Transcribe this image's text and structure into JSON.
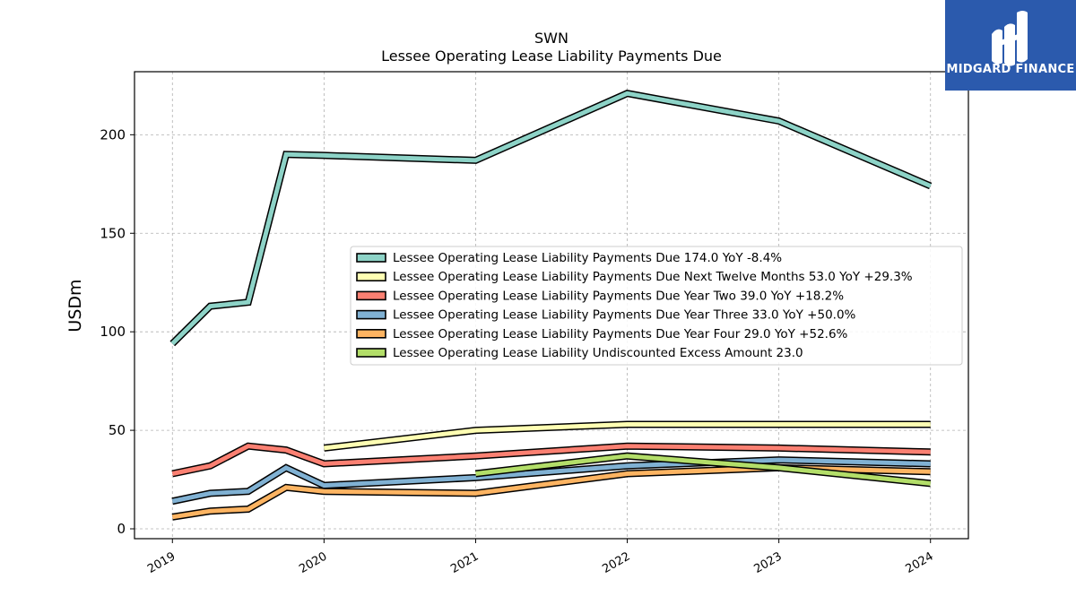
{
  "logo": {
    "text": "MIDGARD FINANCE",
    "bg_color": "#2b5aad"
  },
  "chart_data": {
    "type": "line",
    "title": "SWN",
    "subtitle": "Lessee Operating Lease Liability Payments Due",
    "xlabel": "",
    "ylabel": "USDm",
    "xlim": [
      2018.75,
      2024.25
    ],
    "ylim": [
      -5,
      232
    ],
    "yticks": [
      0,
      50,
      100,
      150,
      200
    ],
    "xticks": [
      2019,
      2020,
      2021,
      2022,
      2023,
      2024
    ],
    "grid": true,
    "legend_position": "center-right",
    "series": [
      {
        "name": "Lessee Operating Lease Liability Payments Due  174.0 YoY -8.4%",
        "color": "#8dd3c7",
        "x": [
          2019.0,
          2019.25,
          2019.5,
          2019.75,
          2020.0,
          2021.0,
          2022.0,
          2023.0,
          2024.0
        ],
        "y": [
          94.0,
          113.0,
          115.0,
          190.0,
          189.5,
          187.0,
          221.0,
          207.0,
          174.0
        ]
      },
      {
        "name": "Lessee Operating Lease Liability Payments Due Next Twelve Months  53.0 YoY +29.3%",
        "color": "#ffffb3",
        "x": [
          2020.0,
          2021.0,
          2022.0,
          2023.0,
          2024.0
        ],
        "y": [
          41.0,
          50.0,
          53.0,
          53.0,
          53.0
        ]
      },
      {
        "name": "Lessee Operating Lease Liability Payments Due Year Two  39.0 YoY +18.2%",
        "color": "#fb8072",
        "x": [
          2019.0,
          2019.25,
          2019.5,
          2019.75,
          2020.0,
          2021.0,
          2022.0,
          2023.0,
          2024.0
        ],
        "y": [
          28.0,
          32.0,
          42.0,
          40.0,
          33.0,
          37.0,
          42.0,
          41.0,
          39.0
        ]
      },
      {
        "name": "Lessee Operating Lease Liability Payments Due Year Three  33.0 YoY +50.0%",
        "color": "#80b1d3",
        "x": [
          2019.0,
          2019.25,
          2019.5,
          2019.75,
          2020.0,
          2021.0,
          2022.0,
          2023.0,
          2024.0
        ],
        "y": [
          14.0,
          18.0,
          19.0,
          31.0,
          22.0,
          26.0,
          32.0,
          35.0,
          33.0
        ]
      },
      {
        "name": "Lessee Operating Lease Liability Payments Due Year Four  29.0 YoY +52.6%",
        "color": "#fdb462",
        "x": [
          2019.0,
          2019.25,
          2019.5,
          2019.75,
          2020.0,
          2021.0,
          2022.0,
          2023.0,
          2024.0
        ],
        "y": [
          6.0,
          9.0,
          10.0,
          21.0,
          19.0,
          18.0,
          28.0,
          31.0,
          29.0
        ]
      },
      {
        "name": "Lessee Operating Lease Liability Undiscounted Excess Amount  23.0",
        "color": "#b3de69",
        "x": [
          2021.0,
          2022.0,
          2023.0,
          2024.0
        ],
        "y": [
          28.0,
          37.0,
          31.0,
          23.0
        ]
      }
    ]
  }
}
